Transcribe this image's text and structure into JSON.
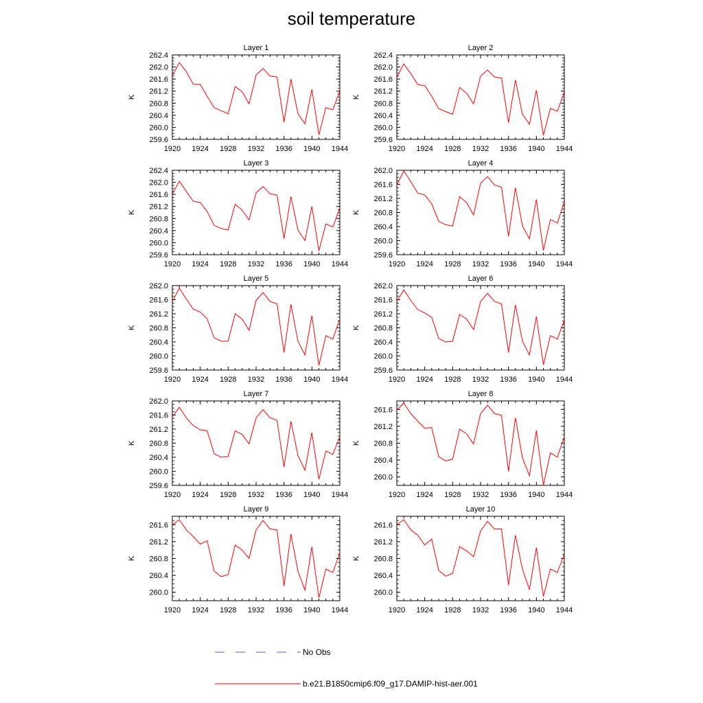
{
  "figure": {
    "title": "soil temperature",
    "legend": [
      {
        "label": "No Obs",
        "color": "#5a5ac8",
        "style": "dashed"
      },
      {
        "label": "b.e21.B1850cmip6.f09_g17.DAMIP-hist-aer.001",
        "color": "#ff0000",
        "style": "solid"
      }
    ]
  },
  "chart_data": [
    {
      "type": "line",
      "title": "Layer 1",
      "ylabel": "K",
      "xlim": [
        1920,
        1944
      ],
      "ylim": [
        259.6,
        262.4
      ],
      "xticks": [
        "1920",
        "1924",
        "1928",
        "1932",
        "1936",
        "1940",
        "1944"
      ],
      "yticks": [
        "259.6",
        "260.0",
        "260.4",
        "260.8",
        "261.2",
        "261.6",
        "262.0",
        "262.4"
      ],
      "x": [
        1920,
        1921,
        1922,
        1923,
        1924,
        1925,
        1926,
        1927,
        1928,
        1929,
        1930,
        1931,
        1932,
        1933,
        1934,
        1935,
        1936,
        1937,
        1938,
        1939,
        1940,
        1941,
        1942,
        1943,
        1944
      ],
      "series": [
        {
          "name": "b.e21.B1850cmip6.f09_g17.DAMIP-hist-aer.001",
          "color": "#ff0000",
          "values": [
            261.7,
            262.15,
            261.85,
            261.43,
            261.42,
            261.03,
            260.65,
            260.55,
            260.45,
            261.35,
            261.18,
            260.78,
            261.73,
            261.95,
            261.7,
            261.67,
            260.17,
            261.6,
            260.45,
            260.12,
            261.26,
            259.75,
            260.65,
            260.58,
            261.2
          ]
        }
      ]
    },
    {
      "type": "line",
      "title": "Layer 2",
      "ylabel": "K",
      "xlim": [
        1920,
        1944
      ],
      "ylim": [
        259.6,
        262.4
      ],
      "xticks": [
        "1920",
        "1924",
        "1928",
        "1932",
        "1936",
        "1940",
        "1944"
      ],
      "yticks": [
        "259.6",
        "260.0",
        "260.4",
        "260.8",
        "261.2",
        "261.6",
        "262.0",
        "262.4"
      ],
      "x": [
        1920,
        1921,
        1922,
        1923,
        1924,
        1925,
        1926,
        1927,
        1928,
        1929,
        1930,
        1931,
        1932,
        1933,
        1934,
        1935,
        1936,
        1937,
        1938,
        1939,
        1940,
        1941,
        1942,
        1943,
        1944
      ],
      "series": [
        {
          "name": "b.e21.B1850cmip6.f09_g17.DAMIP-hist-aer.001",
          "color": "#ff0000",
          "values": [
            261.65,
            262.1,
            261.78,
            261.42,
            261.38,
            261.03,
            260.62,
            260.52,
            260.43,
            261.32,
            261.13,
            260.78,
            261.7,
            261.9,
            261.67,
            261.63,
            260.15,
            261.57,
            260.43,
            260.1,
            261.23,
            259.73,
            260.63,
            260.53,
            261.17
          ]
        }
      ]
    },
    {
      "type": "line",
      "title": "Layer 3",
      "ylabel": "K",
      "xlim": [
        1920,
        1944
      ],
      "ylim": [
        259.6,
        262.4
      ],
      "xticks": [
        "1920",
        "1924",
        "1928",
        "1932",
        "1936",
        "1940",
        "1944"
      ],
      "yticks": [
        "259.6",
        "260.0",
        "260.4",
        "260.8",
        "261.2",
        "261.6",
        "262.0",
        "262.4"
      ],
      "x": [
        1920,
        1921,
        1922,
        1923,
        1924,
        1925,
        1926,
        1927,
        1928,
        1929,
        1930,
        1931,
        1932,
        1933,
        1934,
        1935,
        1936,
        1937,
        1938,
        1939,
        1940,
        1941,
        1942,
        1943,
        1944
      ],
      "series": [
        {
          "name": "b.e21.B1850cmip6.f09_g17.DAMIP-hist-aer.001",
          "color": "#ff0000",
          "values": [
            261.6,
            262.04,
            261.7,
            261.37,
            261.33,
            261.03,
            260.57,
            260.47,
            260.42,
            261.27,
            261.08,
            260.75,
            261.65,
            261.86,
            261.62,
            261.58,
            260.13,
            261.53,
            260.42,
            260.07,
            261.2,
            259.73,
            260.62,
            260.52,
            261.15
          ]
        }
      ]
    },
    {
      "type": "line",
      "title": "Layer 4",
      "ylabel": "K",
      "xlim": [
        1920,
        1944
      ],
      "ylim": [
        259.6,
        262.0
      ],
      "xticks": [
        "1920",
        "1924",
        "1928",
        "1932",
        "1936",
        "1940",
        "1944"
      ],
      "yticks": [
        "259.6",
        "260.0",
        "260.4",
        "260.8",
        "261.2",
        "261.6",
        "262.0"
      ],
      "x": [
        1920,
        1921,
        1922,
        1923,
        1924,
        1925,
        1926,
        1927,
        1928,
        1929,
        1930,
        1931,
        1932,
        1933,
        1934,
        1935,
        1936,
        1937,
        1938,
        1939,
        1940,
        1941,
        1942,
        1943,
        1944
      ],
      "series": [
        {
          "name": "b.e21.B1850cmip6.f09_g17.DAMIP-hist-aer.001",
          "color": "#ff0000",
          "values": [
            261.58,
            261.98,
            261.68,
            261.35,
            261.3,
            261.05,
            260.55,
            260.45,
            260.42,
            261.25,
            261.08,
            260.73,
            261.63,
            261.82,
            261.58,
            261.52,
            260.12,
            261.5,
            260.42,
            260.05,
            261.17,
            259.72,
            260.6,
            260.5,
            261.1
          ]
        }
      ]
    },
    {
      "type": "line",
      "title": "Layer 5",
      "ylabel": "K",
      "xlim": [
        1920,
        1944
      ],
      "ylim": [
        259.6,
        262.0
      ],
      "xticks": [
        "1920",
        "1924",
        "1928",
        "1932",
        "1936",
        "1940",
        "1944"
      ],
      "yticks": [
        "259.6",
        "260.0",
        "260.4",
        "260.8",
        "261.2",
        "261.6",
        "262.0"
      ],
      "x": [
        1920,
        1921,
        1922,
        1923,
        1924,
        1925,
        1926,
        1927,
        1928,
        1929,
        1930,
        1931,
        1932,
        1933,
        1934,
        1935,
        1936,
        1937,
        1938,
        1939,
        1940,
        1941,
        1942,
        1943,
        1944
      ],
      "series": [
        {
          "name": "b.e21.B1850cmip6.f09_g17.DAMIP-hist-aer.001",
          "color": "#ff0000",
          "values": [
            261.55,
            261.93,
            261.62,
            261.33,
            261.25,
            261.05,
            260.52,
            260.42,
            260.42,
            261.2,
            261.05,
            260.73,
            261.58,
            261.8,
            261.55,
            261.48,
            260.1,
            261.47,
            260.42,
            260.03,
            261.15,
            259.73,
            260.58,
            260.48,
            261.05
          ]
        }
      ]
    },
    {
      "type": "line",
      "title": "Layer 6",
      "ylabel": "K",
      "xlim": [
        1920,
        1944
      ],
      "ylim": [
        259.6,
        262.0
      ],
      "xticks": [
        "1920",
        "1924",
        "1928",
        "1932",
        "1936",
        "1940",
        "1944"
      ],
      "yticks": [
        "259.6",
        "260.0",
        "260.4",
        "260.8",
        "261.2",
        "261.6",
        "262.0"
      ],
      "x": [
        1920,
        1921,
        1922,
        1923,
        1924,
        1925,
        1926,
        1927,
        1928,
        1929,
        1930,
        1931,
        1932,
        1933,
        1934,
        1935,
        1936,
        1937,
        1938,
        1939,
        1940,
        1941,
        1942,
        1943,
        1944
      ],
      "series": [
        {
          "name": "b.e21.B1850cmip6.f09_g17.DAMIP-hist-aer.001",
          "color": "#ff0000",
          "values": [
            261.55,
            261.88,
            261.58,
            261.32,
            261.22,
            261.1,
            260.5,
            260.4,
            260.42,
            261.18,
            261.05,
            260.75,
            261.55,
            261.78,
            261.55,
            261.48,
            260.1,
            261.45,
            260.42,
            260.03,
            261.12,
            259.75,
            260.58,
            260.48,
            261.02
          ]
        }
      ]
    },
    {
      "type": "line",
      "title": "Layer 7",
      "ylabel": "K",
      "xlim": [
        1920,
        1944
      ],
      "ylim": [
        259.6,
        262.0
      ],
      "xticks": [
        "1920",
        "1924",
        "1928",
        "1932",
        "1936",
        "1940",
        "1944"
      ],
      "yticks": [
        "259.6",
        "260.0",
        "260.4",
        "260.8",
        "261.2",
        "261.6",
        "262.0"
      ],
      "x": [
        1920,
        1921,
        1922,
        1923,
        1924,
        1925,
        1926,
        1927,
        1928,
        1929,
        1930,
        1931,
        1932,
        1933,
        1934,
        1935,
        1936,
        1937,
        1938,
        1939,
        1940,
        1941,
        1942,
        1943,
        1944
      ],
      "series": [
        {
          "name": "b.e21.B1850cmip6.f09_g17.DAMIP-hist-aer.001",
          "color": "#ff0000",
          "values": [
            261.55,
            261.82,
            261.52,
            261.3,
            261.18,
            261.15,
            260.5,
            260.4,
            260.42,
            261.15,
            261.05,
            260.78,
            261.52,
            261.75,
            261.52,
            261.45,
            260.12,
            261.42,
            260.45,
            260.03,
            261.1,
            259.77,
            260.58,
            260.48,
            260.98
          ]
        }
      ]
    },
    {
      "type": "line",
      "title": "Layer 8",
      "ylabel": "K",
      "xlim": [
        1920,
        1944
      ],
      "ylim": [
        259.8,
        261.8
      ],
      "xticks": [
        "1920",
        "1924",
        "1928",
        "1932",
        "1936",
        "1940",
        "1944"
      ],
      "yticks": [
        "260.0",
        "260.4",
        "260.8",
        "261.2",
        "261.6"
      ],
      "x": [
        1920,
        1921,
        1922,
        1923,
        1924,
        1925,
        1926,
        1927,
        1928,
        1929,
        1930,
        1931,
        1932,
        1933,
        1934,
        1935,
        1936,
        1937,
        1938,
        1939,
        1940,
        1941,
        1942,
        1943,
        1944
      ],
      "series": [
        {
          "name": "b.e21.B1850cmip6.f09_g17.DAMIP-hist-aer.001",
          "color": "#ff0000",
          "values": [
            261.58,
            261.75,
            261.5,
            261.32,
            261.15,
            261.17,
            260.48,
            260.38,
            260.42,
            261.13,
            261.02,
            260.78,
            261.5,
            261.7,
            261.5,
            261.46,
            260.13,
            261.4,
            260.45,
            260.03,
            261.1,
            259.8,
            260.57,
            260.47,
            260.95
          ]
        }
      ]
    },
    {
      "type": "line",
      "title": "Layer 9",
      "ylabel": "K",
      "xlim": [
        1920,
        1944
      ],
      "ylim": [
        259.8,
        261.8
      ],
      "xticks": [
        "1920",
        "1924",
        "1928",
        "1932",
        "1936",
        "1940",
        "1944"
      ],
      "yticks": [
        "260.0",
        "260.4",
        "260.8",
        "261.2",
        "261.6"
      ],
      "x": [
        1920,
        1921,
        1922,
        1923,
        1924,
        1925,
        1926,
        1927,
        1928,
        1929,
        1930,
        1931,
        1932,
        1933,
        1934,
        1935,
        1936,
        1937,
        1938,
        1939,
        1940,
        1941,
        1942,
        1943,
        1944
      ],
      "series": [
        {
          "name": "b.e21.B1850cmip6.f09_g17.DAMIP-hist-aer.001",
          "color": "#ff0000",
          "values": [
            261.6,
            261.72,
            261.48,
            261.32,
            261.14,
            261.22,
            260.5,
            260.37,
            260.42,
            261.12,
            261.0,
            260.8,
            261.48,
            261.7,
            261.5,
            261.48,
            260.15,
            261.38,
            260.5,
            260.05,
            261.08,
            259.87,
            260.55,
            260.47,
            260.93
          ]
        }
      ]
    },
    {
      "type": "line",
      "title": "Layer 10",
      "ylabel": "K",
      "xlim": [
        1920,
        1944
      ],
      "ylim": [
        259.8,
        261.8
      ],
      "xticks": [
        "1920",
        "1924",
        "1928",
        "1932",
        "1936",
        "1940",
        "1944"
      ],
      "yticks": [
        "260.0",
        "260.4",
        "260.8",
        "261.2",
        "261.6"
      ],
      "x": [
        1920,
        1921,
        1922,
        1923,
        1924,
        1925,
        1926,
        1927,
        1928,
        1929,
        1930,
        1931,
        1932,
        1933,
        1934,
        1935,
        1936,
        1937,
        1938,
        1939,
        1940,
        1941,
        1942,
        1943,
        1944
      ],
      "series": [
        {
          "name": "b.e21.B1850cmip6.f09_g17.DAMIP-hist-aer.001",
          "color": "#ff0000",
          "values": [
            261.6,
            261.72,
            261.48,
            261.35,
            261.12,
            261.26,
            260.52,
            260.38,
            260.45,
            261.08,
            260.98,
            260.84,
            261.45,
            261.68,
            261.5,
            261.5,
            260.17,
            261.35,
            260.55,
            260.06,
            261.06,
            259.9,
            260.55,
            260.47,
            260.9
          ]
        }
      ]
    }
  ]
}
